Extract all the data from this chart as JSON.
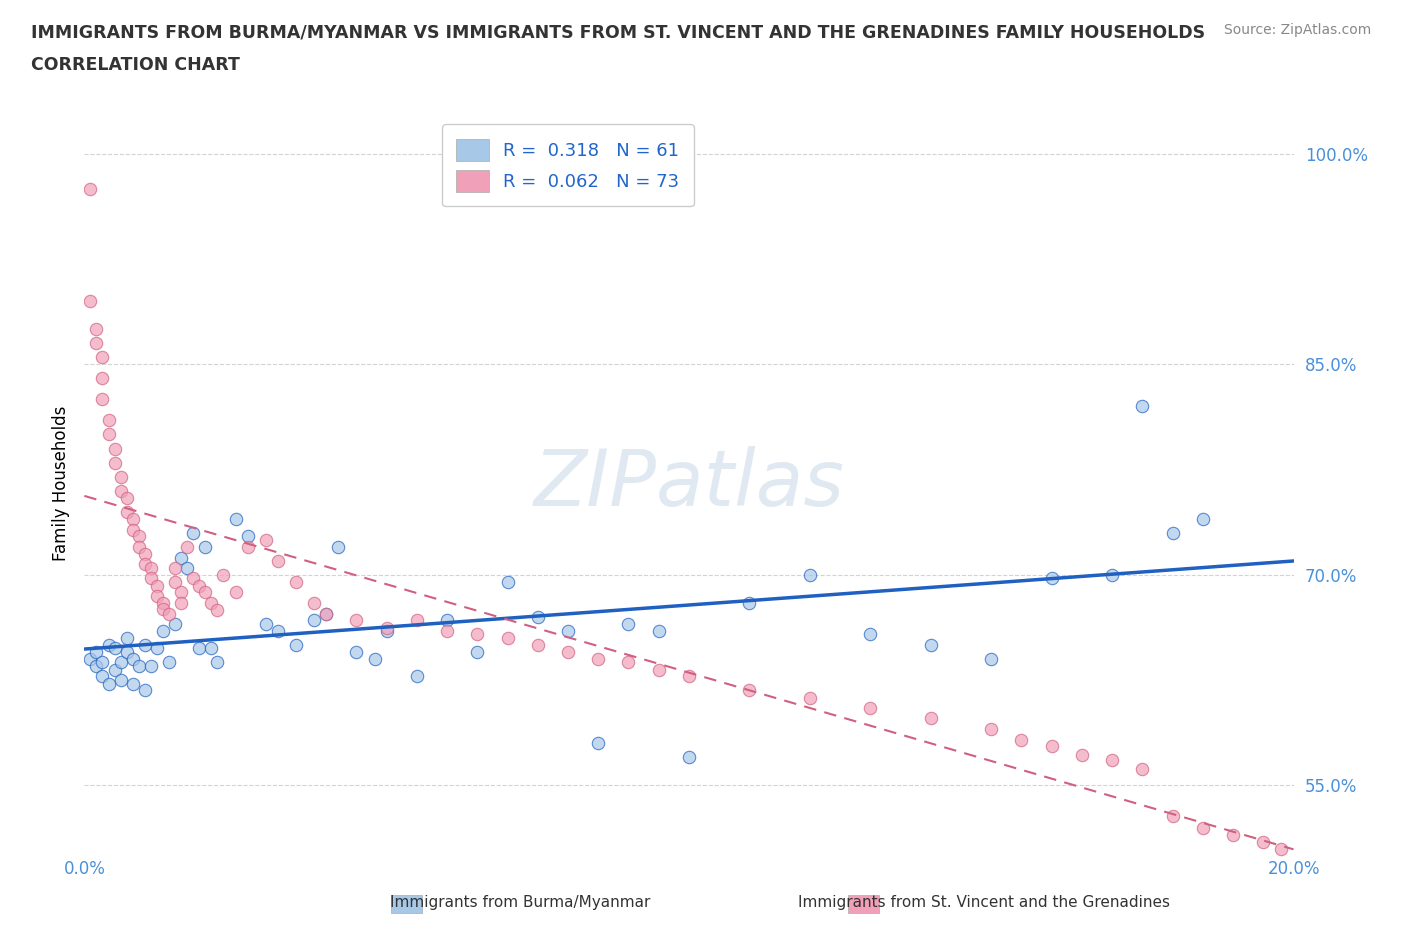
{
  "title_line1": "IMMIGRANTS FROM BURMA/MYANMAR VS IMMIGRANTS FROM ST. VINCENT AND THE GRENADINES FAMILY HOUSEHOLDS",
  "title_line2": "CORRELATION CHART",
  "source": "Source: ZipAtlas.com",
  "ylabel": "Family Households",
  "xmin": 0.0,
  "xmax": 0.2,
  "ymin": 0.5,
  "ymax": 1.03,
  "ytick_vals": [
    0.55,
    0.7,
    0.85,
    1.0
  ],
  "ytick_labels": [
    "55.0%",
    "70.0%",
    "85.0%",
    "100.0%"
  ],
  "xtick_vals": [
    0.0,
    0.2
  ],
  "xtick_labels": [
    "0.0%",
    "20.0%"
  ],
  "R_blue": 0.318,
  "N_blue": 61,
  "R_pink": 0.062,
  "N_pink": 73,
  "color_blue": "#a8c8e8",
  "color_pink": "#f0a0b8",
  "trendline_blue_color": "#2060c0",
  "trendline_pink_color": "#d06080",
  "legend_label_blue": "Immigrants from Burma/Myanmar",
  "legend_label_pink": "Immigrants from St. Vincent and the Grenadines",
  "blue_x": [
    0.001,
    0.002,
    0.002,
    0.003,
    0.003,
    0.004,
    0.004,
    0.005,
    0.005,
    0.006,
    0.006,
    0.007,
    0.007,
    0.008,
    0.008,
    0.009,
    0.01,
    0.01,
    0.011,
    0.012,
    0.013,
    0.014,
    0.015,
    0.016,
    0.017,
    0.018,
    0.019,
    0.02,
    0.021,
    0.022,
    0.025,
    0.027,
    0.03,
    0.032,
    0.035,
    0.038,
    0.04,
    0.042,
    0.045,
    0.048,
    0.05,
    0.055,
    0.06,
    0.065,
    0.07,
    0.075,
    0.08,
    0.085,
    0.09,
    0.095,
    0.1,
    0.11,
    0.12,
    0.13,
    0.14,
    0.15,
    0.16,
    0.17,
    0.175,
    0.18,
    0.185
  ],
  "blue_y": [
    0.64,
    0.635,
    0.645,
    0.628,
    0.638,
    0.65,
    0.622,
    0.632,
    0.648,
    0.625,
    0.638,
    0.645,
    0.655,
    0.64,
    0.622,
    0.635,
    0.65,
    0.618,
    0.635,
    0.648,
    0.66,
    0.638,
    0.665,
    0.712,
    0.705,
    0.73,
    0.648,
    0.72,
    0.648,
    0.638,
    0.74,
    0.728,
    0.665,
    0.66,
    0.65,
    0.668,
    0.672,
    0.72,
    0.645,
    0.64,
    0.66,
    0.628,
    0.668,
    0.645,
    0.695,
    0.67,
    0.66,
    0.58,
    0.665,
    0.66,
    0.57,
    0.68,
    0.7,
    0.658,
    0.65,
    0.64,
    0.698,
    0.7,
    0.82,
    0.73,
    0.74
  ],
  "pink_x": [
    0.001,
    0.001,
    0.002,
    0.002,
    0.003,
    0.003,
    0.003,
    0.004,
    0.004,
    0.005,
    0.005,
    0.006,
    0.006,
    0.007,
    0.007,
    0.008,
    0.008,
    0.009,
    0.009,
    0.01,
    0.01,
    0.011,
    0.011,
    0.012,
    0.012,
    0.013,
    0.013,
    0.014,
    0.015,
    0.015,
    0.016,
    0.016,
    0.017,
    0.018,
    0.019,
    0.02,
    0.021,
    0.022,
    0.023,
    0.025,
    0.027,
    0.03,
    0.032,
    0.035,
    0.038,
    0.04,
    0.045,
    0.05,
    0.055,
    0.06,
    0.065,
    0.07,
    0.075,
    0.08,
    0.085,
    0.09,
    0.095,
    0.1,
    0.11,
    0.12,
    0.13,
    0.14,
    0.15,
    0.155,
    0.16,
    0.165,
    0.17,
    0.175,
    0.18,
    0.185,
    0.19,
    0.195,
    0.198
  ],
  "pink_y": [
    0.975,
    0.895,
    0.875,
    0.865,
    0.855,
    0.84,
    0.825,
    0.81,
    0.8,
    0.79,
    0.78,
    0.77,
    0.76,
    0.755,
    0.745,
    0.74,
    0.732,
    0.728,
    0.72,
    0.715,
    0.708,
    0.705,
    0.698,
    0.692,
    0.685,
    0.68,
    0.676,
    0.672,
    0.705,
    0.695,
    0.688,
    0.68,
    0.72,
    0.698,
    0.692,
    0.688,
    0.68,
    0.675,
    0.7,
    0.688,
    0.72,
    0.725,
    0.71,
    0.695,
    0.68,
    0.672,
    0.668,
    0.662,
    0.668,
    0.66,
    0.658,
    0.655,
    0.65,
    0.645,
    0.64,
    0.638,
    0.632,
    0.628,
    0.618,
    0.612,
    0.605,
    0.598,
    0.59,
    0.582,
    0.578,
    0.572,
    0.568,
    0.562,
    0.528,
    0.52,
    0.515,
    0.51,
    0.505
  ]
}
